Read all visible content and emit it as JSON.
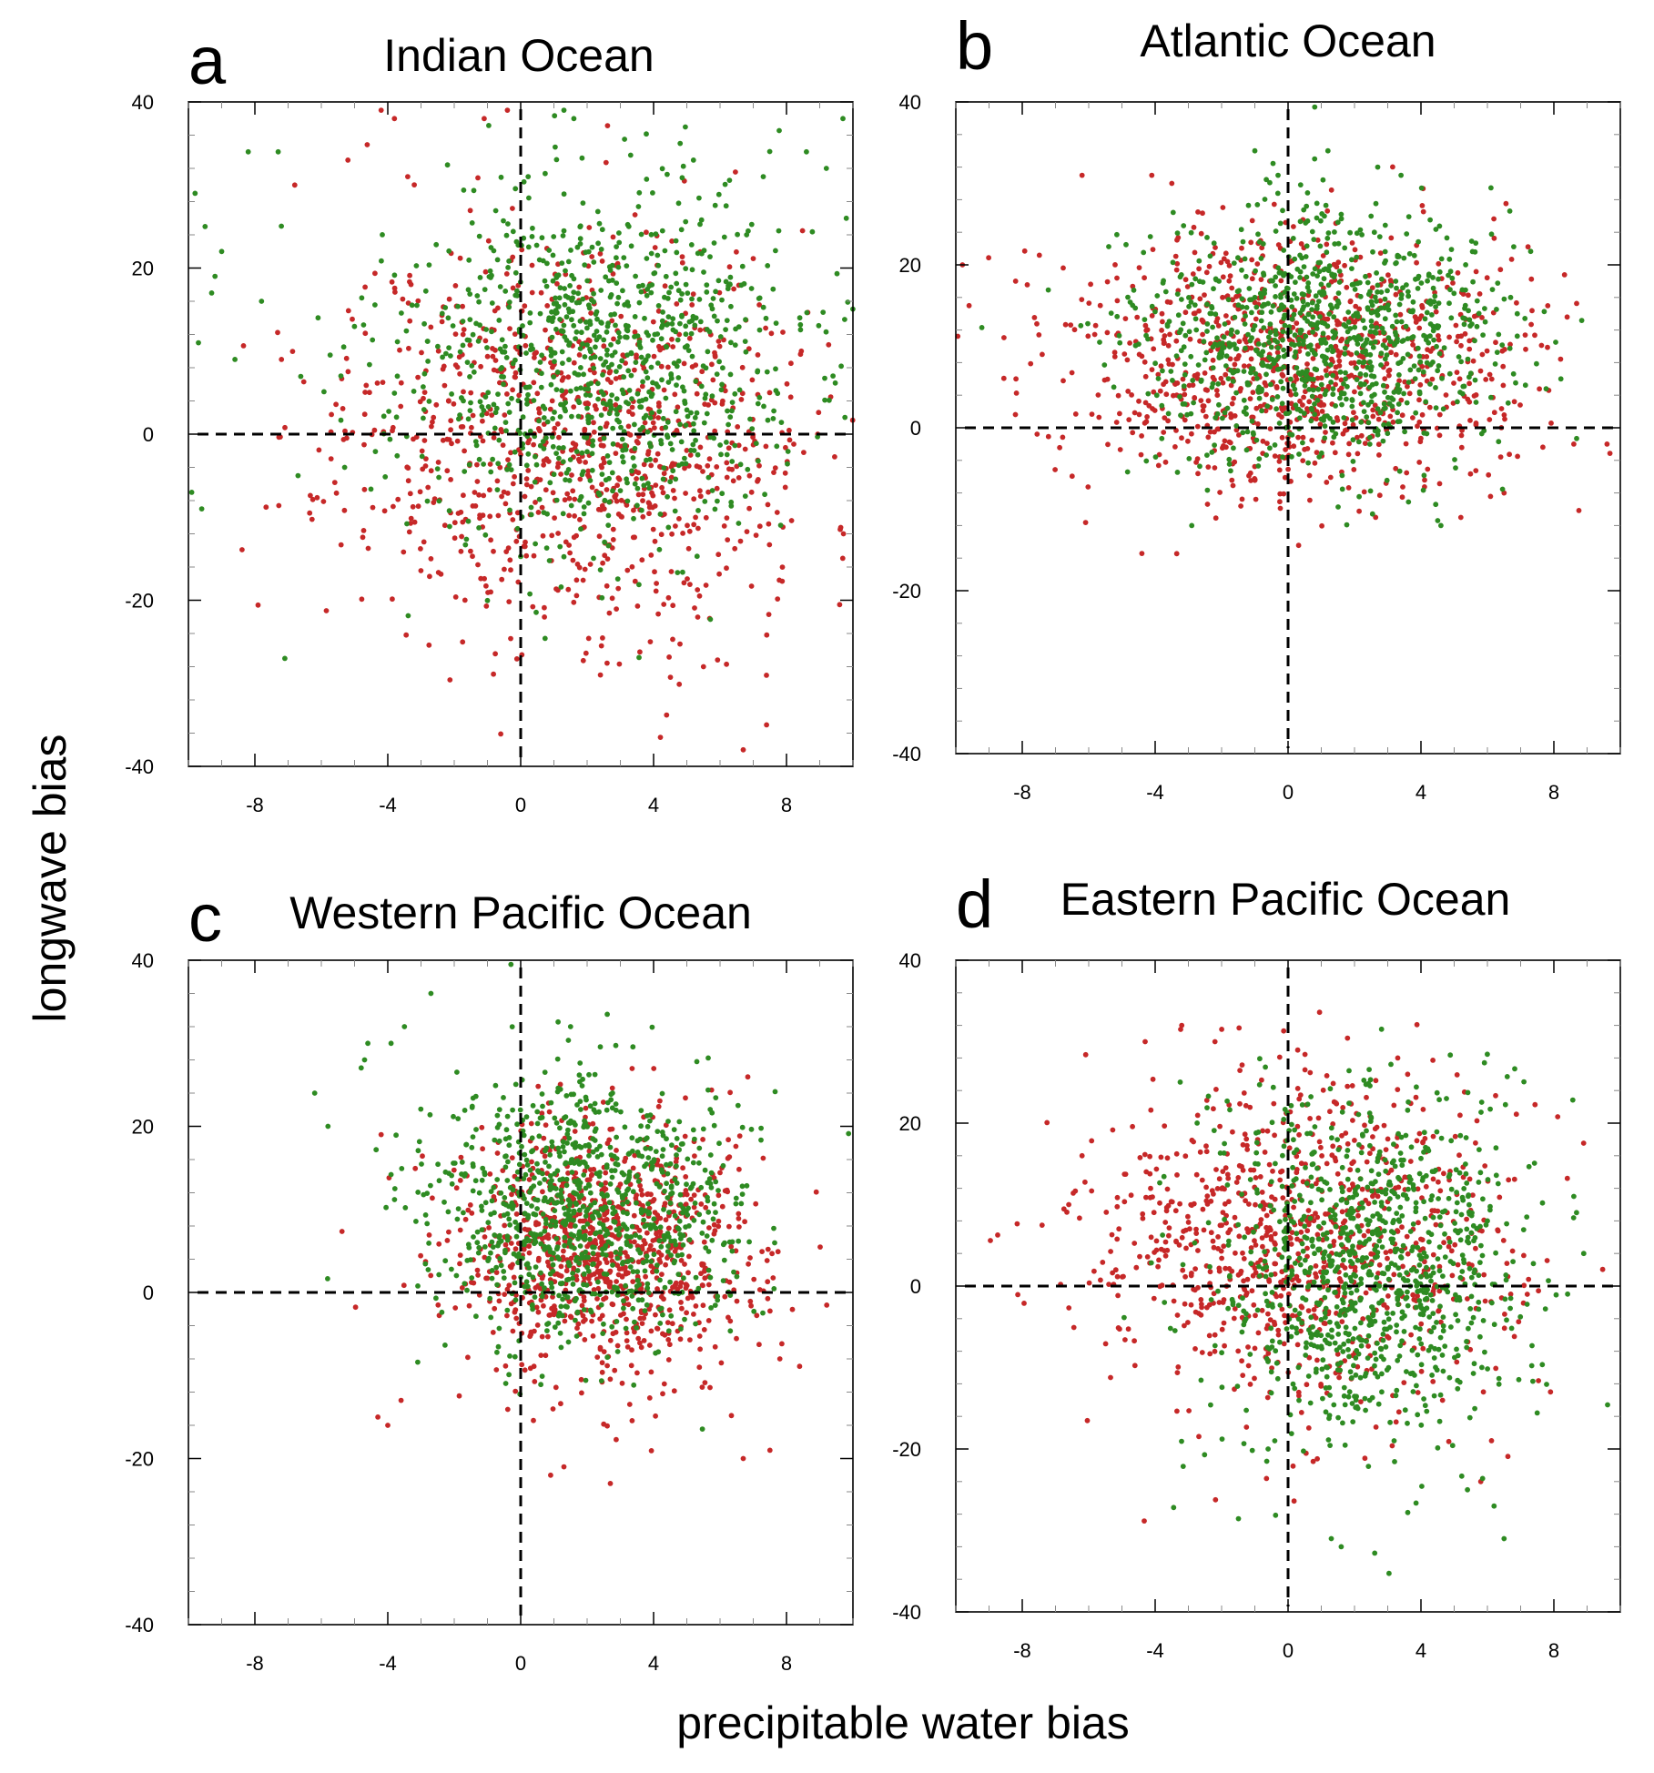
{
  "figure": {
    "ylabel": "longwave bias",
    "xlabel": "precipitable water bias"
  },
  "colors": {
    "series_a": "#c62828",
    "series_b": "#2e8b22",
    "axis": "#000000",
    "minor_tick": "#888888"
  },
  "chart_data": [
    {
      "type": "scatter",
      "panel_letter": "a",
      "title": "Indian Ocean",
      "xlim": [
        -10,
        10
      ],
      "ylim": [
        -40,
        40
      ],
      "xticks": [
        "-8",
        "-4",
        "0",
        "4",
        "8"
      ],
      "yticks": [
        "-40",
        "-20",
        "0",
        "20",
        "40"
      ],
      "series": [
        {
          "name": "red",
          "color": "#c62828",
          "n": 950,
          "center": [
            1.8,
            0
          ],
          "spread": [
            3.6,
            12
          ],
          "seed": 11,
          "x": [
            -4.2,
            -3.8,
            -1.1,
            -0.4,
            -6.8,
            -5.2,
            -3.4,
            -7.2,
            6.7,
            7.4,
            2.4,
            3.9,
            5.5,
            -2.7,
            -0.9
          ],
          "y": [
            39,
            38,
            38,
            39,
            30,
            33,
            31,
            9,
            -38,
            -35,
            -29,
            -25,
            -28,
            -15,
            -19
          ]
        },
        {
          "name": "green",
          "color": "#2e8b22",
          "n": 950,
          "center": [
            2.2,
            8
          ],
          "spread": [
            3.0,
            11
          ],
          "seed": 23,
          "x": [
            -9.8,
            -9.5,
            -8.2,
            -9.0,
            -7.8,
            -9.2,
            -8.6,
            -7.3,
            -9.9,
            -9.6,
            1.3,
            1.6,
            4.8,
            5.2,
            8.6,
            9.2,
            9.7,
            9.8,
            -7.1,
            7.3,
            6.8,
            8.4,
            9.4,
            -9.7,
            -9.3,
            -5.3,
            -6.7,
            -6.1
          ],
          "y": [
            29,
            25,
            34,
            22,
            16,
            19,
            9,
            34,
            -7,
            -9,
            39,
            38,
            35,
            33,
            34,
            32,
            38,
            26,
            -27,
            31,
            24,
            14,
            7,
            11,
            17,
            -4,
            -5,
            14
          ]
        }
      ]
    },
    {
      "type": "scatter",
      "panel_letter": "b",
      "title": "Atlantic Ocean",
      "xlim": [
        -10,
        10
      ],
      "ylim": [
        -40,
        40
      ],
      "xticks": [
        "-8",
        "-4",
        "0",
        "4",
        "8"
      ],
      "yticks": [
        "-40",
        "-20",
        "0",
        "20",
        "40"
      ],
      "series": [
        {
          "name": "red",
          "color": "#c62828",
          "n": 950,
          "center": [
            0.3,
            8
          ],
          "spread": [
            3.3,
            8
          ],
          "seed": 37,
          "x": [
            -9.8,
            -9.6,
            -8.2,
            -7.4,
            -6.2,
            -4.1,
            -3.5,
            9.6,
            8.6,
            6.5,
            5.2
          ],
          "y": [
            20,
            15,
            18,
            9,
            31,
            31,
            30,
            -2,
            -2,
            -8,
            -11
          ]
        },
        {
          "name": "green",
          "color": "#2e8b22",
          "n": 950,
          "center": [
            1.0,
            11
          ],
          "spread": [
            2.7,
            8
          ],
          "seed": 41,
          "x": [
            -1.0,
            -0.3,
            0.8,
            1.2,
            2.7,
            3.4,
            6.7,
            6.9,
            -2.9,
            4.6
          ],
          "y": [
            34,
            31,
            33,
            34,
            32,
            31,
            16,
            14,
            -12,
            -12
          ]
        }
      ]
    },
    {
      "type": "scatter",
      "panel_letter": "c",
      "title": "Western Pacific Ocean",
      "xlim": [
        -10,
        10
      ],
      "ylim": [
        -40,
        40
      ],
      "xticks": [
        "-8",
        "-4",
        "0",
        "4",
        "8"
      ],
      "yticks": [
        "-40",
        "-20",
        "0",
        "20",
        "40"
      ],
      "series": [
        {
          "name": "red",
          "color": "#c62828",
          "n": 950,
          "center": [
            2.6,
            5
          ],
          "spread": [
            2.3,
            8
          ],
          "seed": 53,
          "x": [
            -4.3,
            -4.0,
            -3.6,
            -4.2,
            6.7,
            7.5,
            7.8,
            0.9,
            2.7,
            1.3
          ],
          "y": [
            -15,
            -16,
            -13,
            19,
            -20,
            -19,
            -8,
            -22,
            -23,
            -21
          ]
        },
        {
          "name": "green",
          "color": "#2e8b22",
          "n": 950,
          "center": [
            1.8,
            10
          ],
          "spread": [
            2.3,
            8
          ],
          "seed": 59,
          "x": [
            -6.2,
            -5.8,
            -2.7,
            -4.6,
            -3.5,
            1.5,
            -3.9,
            -4.7
          ],
          "y": [
            24,
            20,
            36,
            30,
            32,
            32,
            30,
            28
          ]
        }
      ]
    },
    {
      "type": "scatter",
      "panel_letter": "d",
      "title": "Eastern Pacific Ocean",
      "xlim": [
        -10,
        10
      ],
      "ylim": [
        -40,
        40
      ],
      "xticks": [
        "-8",
        "-4",
        "0",
        "4",
        "8"
      ],
      "yticks": [
        "-40",
        "-20",
        "0",
        "20",
        "40"
      ],
      "series": [
        {
          "name": "red",
          "color": "#c62828",
          "n": 900,
          "center": [
            0.3,
            5
          ],
          "spread": [
            3.1,
            10
          ],
          "seed": 67,
          "x": [
            -6.6,
            -6.2,
            -4.3,
            -3.2,
            -2.2,
            3.3,
            3.6,
            7.2,
            7.9,
            5.8
          ],
          "y": [
            10,
            16,
            30,
            32,
            30,
            28,
            26,
            -1,
            -13,
            -24
          ]
        },
        {
          "name": "green",
          "color": "#2e8b22",
          "n": 1000,
          "center": [
            2.4,
            2
          ],
          "spread": [
            2.3,
            11
          ],
          "seed": 71,
          "x": [
            1.3,
            1.6,
            6.2,
            6.5,
            5.4,
            8.6,
            8.9,
            -0.6,
            -0.4
          ],
          "y": [
            -31,
            -32,
            -27,
            -31,
            -25,
            11,
            4,
            -20,
            -19
          ]
        }
      ]
    }
  ]
}
